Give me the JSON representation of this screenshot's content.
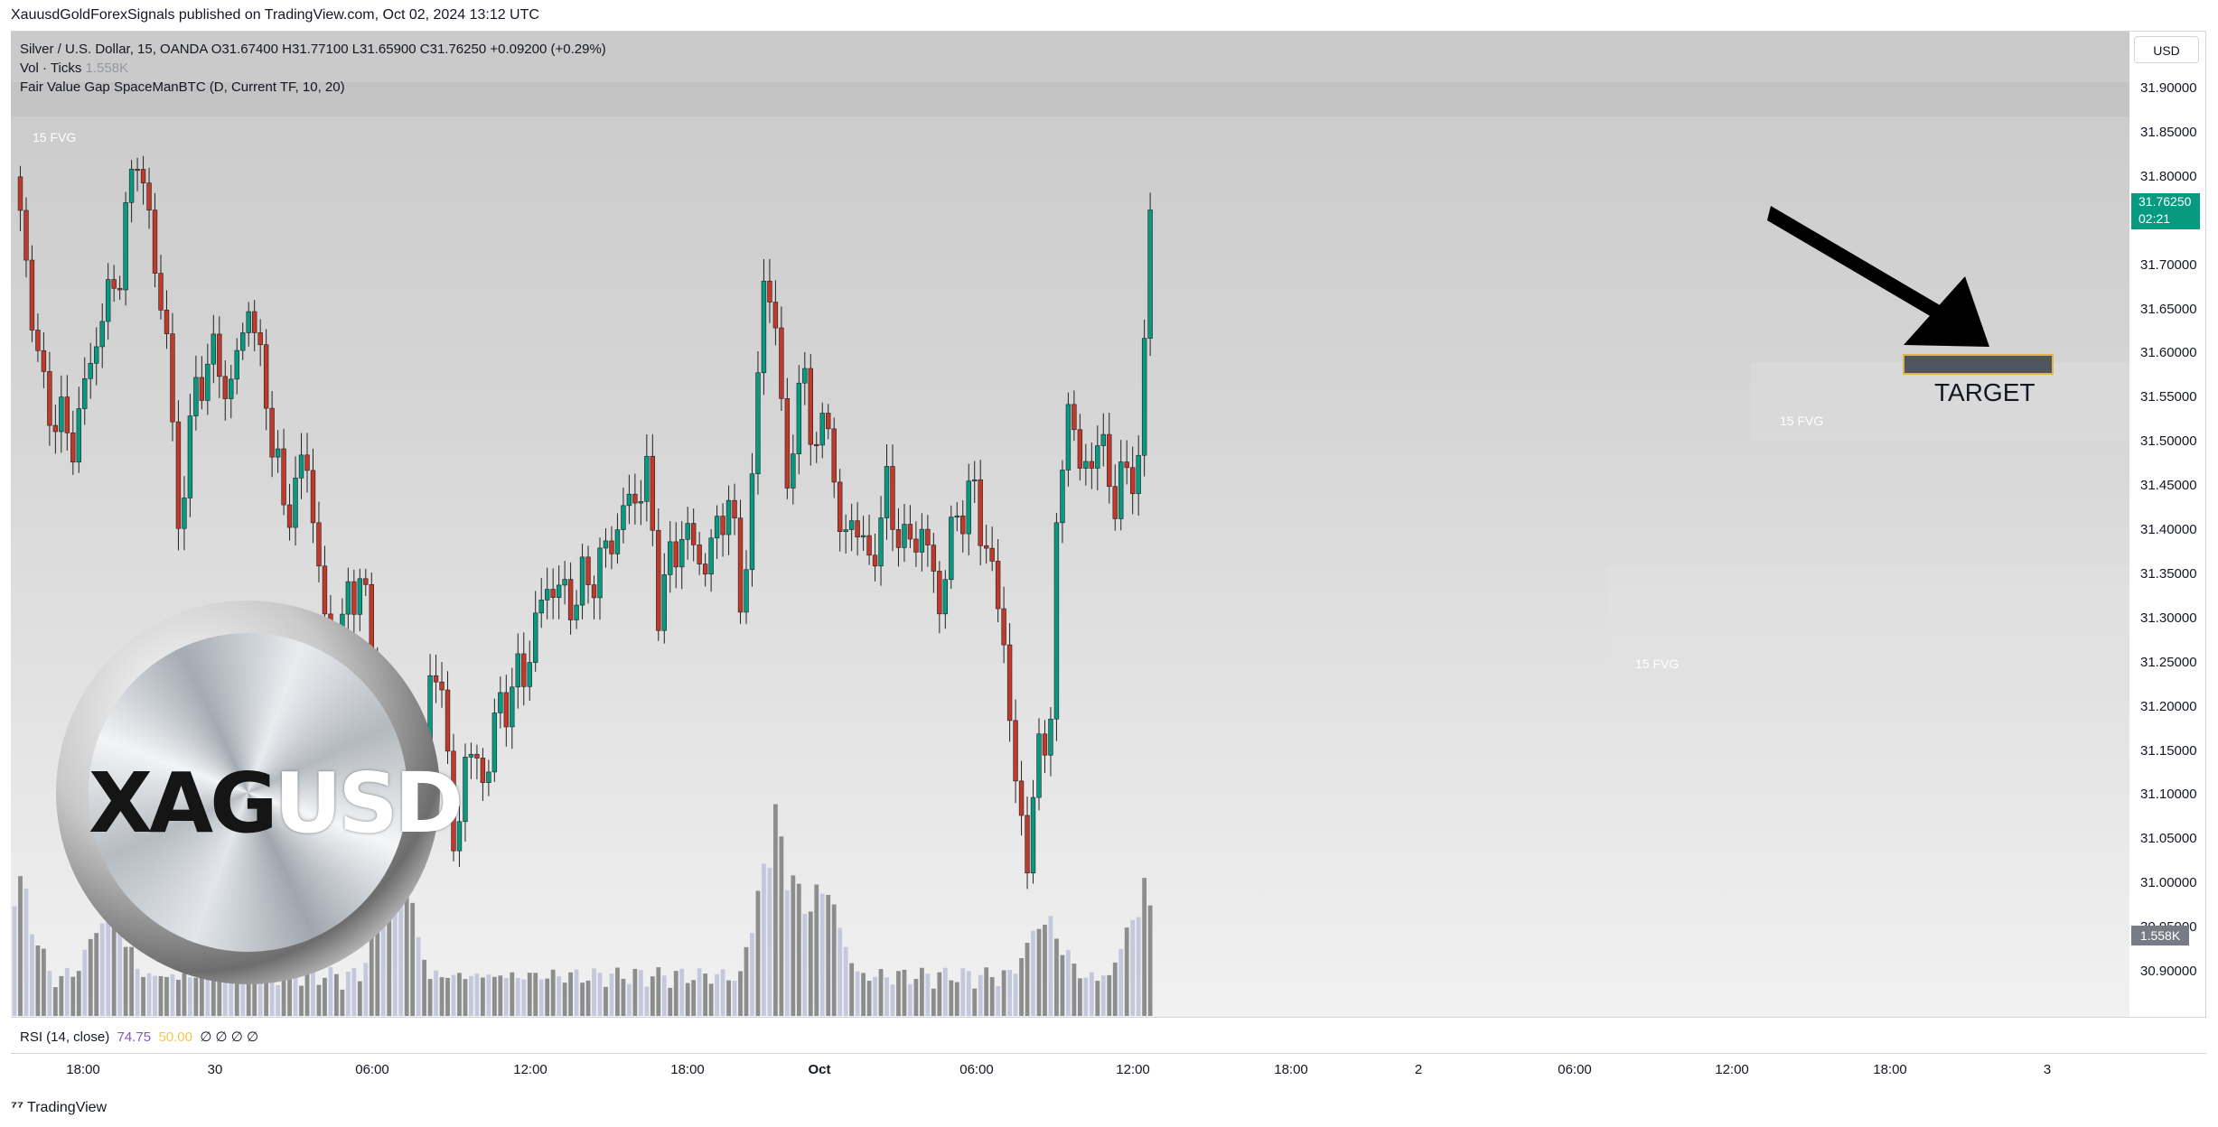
{
  "header": {
    "text": "XauusdGoldForexSignals published on TradingView.com, Oct 02, 2024 13:12 UTC"
  },
  "legend": {
    "symbol": "Silver / U.S. Dollar, 15, OANDA",
    "ohlc": "O31.67400 H31.77100 L31.65900 C31.76250 +0.09200 (+0.29%)",
    "vol_label": "Vol · Ticks",
    "vol_value": "1.558K",
    "indicator": "Fair Value Gap SpaceManBTC (D, Current TF, 10, 20)"
  },
  "fvg_labels": [
    "15 FVG",
    "15 FVG",
    "15 FVG"
  ],
  "target_label": "TARGET",
  "logo": {
    "part1": "XAG",
    "part2": "USD"
  },
  "price_axis": {
    "currency_button": "USD",
    "ticks": [
      "31.90000",
      "31.85000",
      "31.80000",
      "31.75000",
      "31.70000",
      "31.65000",
      "31.60000",
      "31.55000",
      "31.50000",
      "31.45000",
      "31.40000",
      "31.35000",
      "31.30000",
      "31.25000",
      "31.20000",
      "31.15000",
      "31.10000",
      "31.05000",
      "31.00000",
      "30.95000",
      "30.90000"
    ],
    "last_price": "31.76250",
    "countdown": "02:21",
    "volume_badge": "1.558K"
  },
  "rsi": {
    "label": "RSI (14, close)",
    "value1": "74.75",
    "value2": "50.00",
    "zeros": "∅ ∅ ∅ ∅"
  },
  "time_axis": [
    "18:00",
    "30",
    "06:00",
    "12:00",
    "18:00",
    "Oct",
    "06:00",
    "12:00",
    "18:00",
    "2",
    "06:00",
    "12:00",
    "18:00",
    "3"
  ],
  "footer": {
    "brand": "TradingView"
  },
  "colors": {
    "up": "#089981",
    "down": "#c0392b",
    "vol_dark": "#8d8d8d",
    "vol_light": "#c3c8dc",
    "target_border": "#e0b54a"
  },
  "icons": {
    "footer_logo": "tradingview-logo-icon",
    "flash": "lightning-icon"
  },
  "chart_data": {
    "type": "candlestick",
    "symbol": "Silver / U.S. Dollar",
    "interval": "15",
    "ylim": [
      30.88,
      31.92
    ],
    "keypoints": [
      [
        0,
        31.8
      ],
      [
        5,
        31.55
      ],
      [
        10,
        31.5
      ],
      [
        14,
        31.62
      ],
      [
        18,
        31.7
      ],
      [
        21,
        31.84
      ],
      [
        23,
        31.74
      ],
      [
        26,
        31.62
      ],
      [
        28,
        31.4
      ],
      [
        30,
        31.52
      ],
      [
        33,
        31.6
      ],
      [
        37,
        31.56
      ],
      [
        40,
        31.66
      ],
      [
        43,
        31.55
      ],
      [
        46,
        31.42
      ],
      [
        50,
        31.48
      ],
      [
        54,
        31.23
      ],
      [
        57,
        31.32
      ],
      [
        59,
        31.35
      ],
      [
        62,
        31.22
      ],
      [
        64,
        31.06
      ],
      [
        67,
        31.0
      ],
      [
        70,
        31.18
      ],
      [
        73,
        31.25
      ],
      [
        75,
        31.02
      ],
      [
        77,
        31.15
      ],
      [
        80,
        31.12
      ],
      [
        83,
        31.2
      ],
      [
        87,
        31.24
      ],
      [
        91,
        31.34
      ],
      [
        95,
        31.32
      ],
      [
        100,
        31.36
      ],
      [
        104,
        31.42
      ],
      [
        108,
        31.46
      ],
      [
        110,
        31.32
      ],
      [
        114,
        31.4
      ],
      [
        118,
        31.36
      ],
      [
        122,
        31.44
      ],
      [
        124,
        31.32
      ],
      [
        126,
        31.44
      ],
      [
        128,
        31.7
      ],
      [
        130,
        31.62
      ],
      [
        132,
        31.46
      ],
      [
        135,
        31.58
      ],
      [
        137,
        31.48
      ],
      [
        139,
        31.54
      ],
      [
        141,
        31.38
      ],
      [
        143,
        31.42
      ],
      [
        146,
        31.36
      ],
      [
        149,
        31.44
      ],
      [
        152,
        31.38
      ],
      [
        155,
        31.4
      ],
      [
        158,
        31.32
      ],
      [
        161,
        31.42
      ],
      [
        164,
        31.44
      ],
      [
        166,
        31.38
      ],
      [
        169,
        31.28
      ],
      [
        171,
        31.1
      ],
      [
        173,
        31.04
      ],
      [
        175,
        31.14
      ],
      [
        177,
        31.2
      ],
      [
        178,
        31.38
      ],
      [
        180,
        31.56
      ],
      [
        182,
        31.46
      ],
      [
        185,
        31.5
      ],
      [
        188,
        31.44
      ],
      [
        190,
        31.46
      ],
      [
        192,
        31.48
      ],
      [
        193,
        31.6
      ],
      [
        194,
        31.76
      ]
    ],
    "volume_spikes": [
      [
        0,
        0.45
      ],
      [
        16,
        0.28
      ],
      [
        65,
        0.52
      ],
      [
        130,
        0.65
      ],
      [
        138,
        0.4
      ],
      [
        176,
        0.25
      ],
      [
        193,
        0.35
      ]
    ]
  }
}
